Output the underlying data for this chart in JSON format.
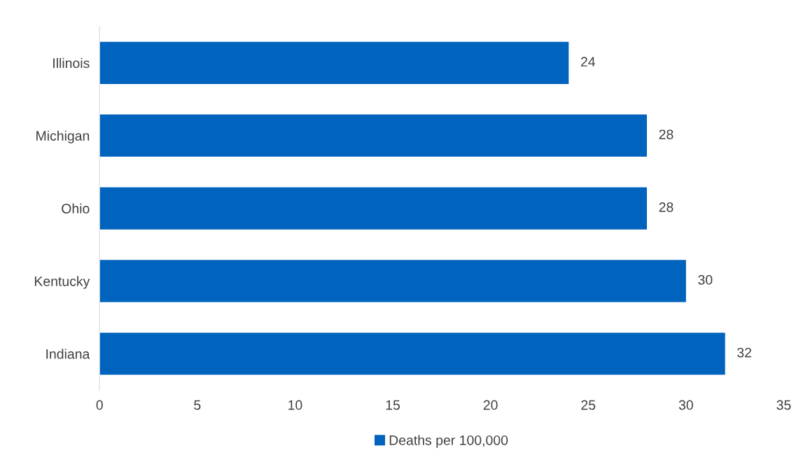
{
  "chart_data": {
    "type": "bar",
    "orientation": "horizontal",
    "categories": [
      "Illinois",
      "Michigan",
      "Ohio",
      "Kentucky",
      "Indiana"
    ],
    "series": [
      {
        "name": "Deaths per 100,000",
        "color": "#0063be",
        "values": [
          24,
          28,
          28,
          30,
          32
        ]
      }
    ],
    "xlim": [
      0,
      35
    ],
    "xticks": [
      0,
      5,
      10,
      15,
      20,
      25,
      30,
      35
    ],
    "grid": false,
    "legend": "bottom",
    "data_labels": true
  }
}
